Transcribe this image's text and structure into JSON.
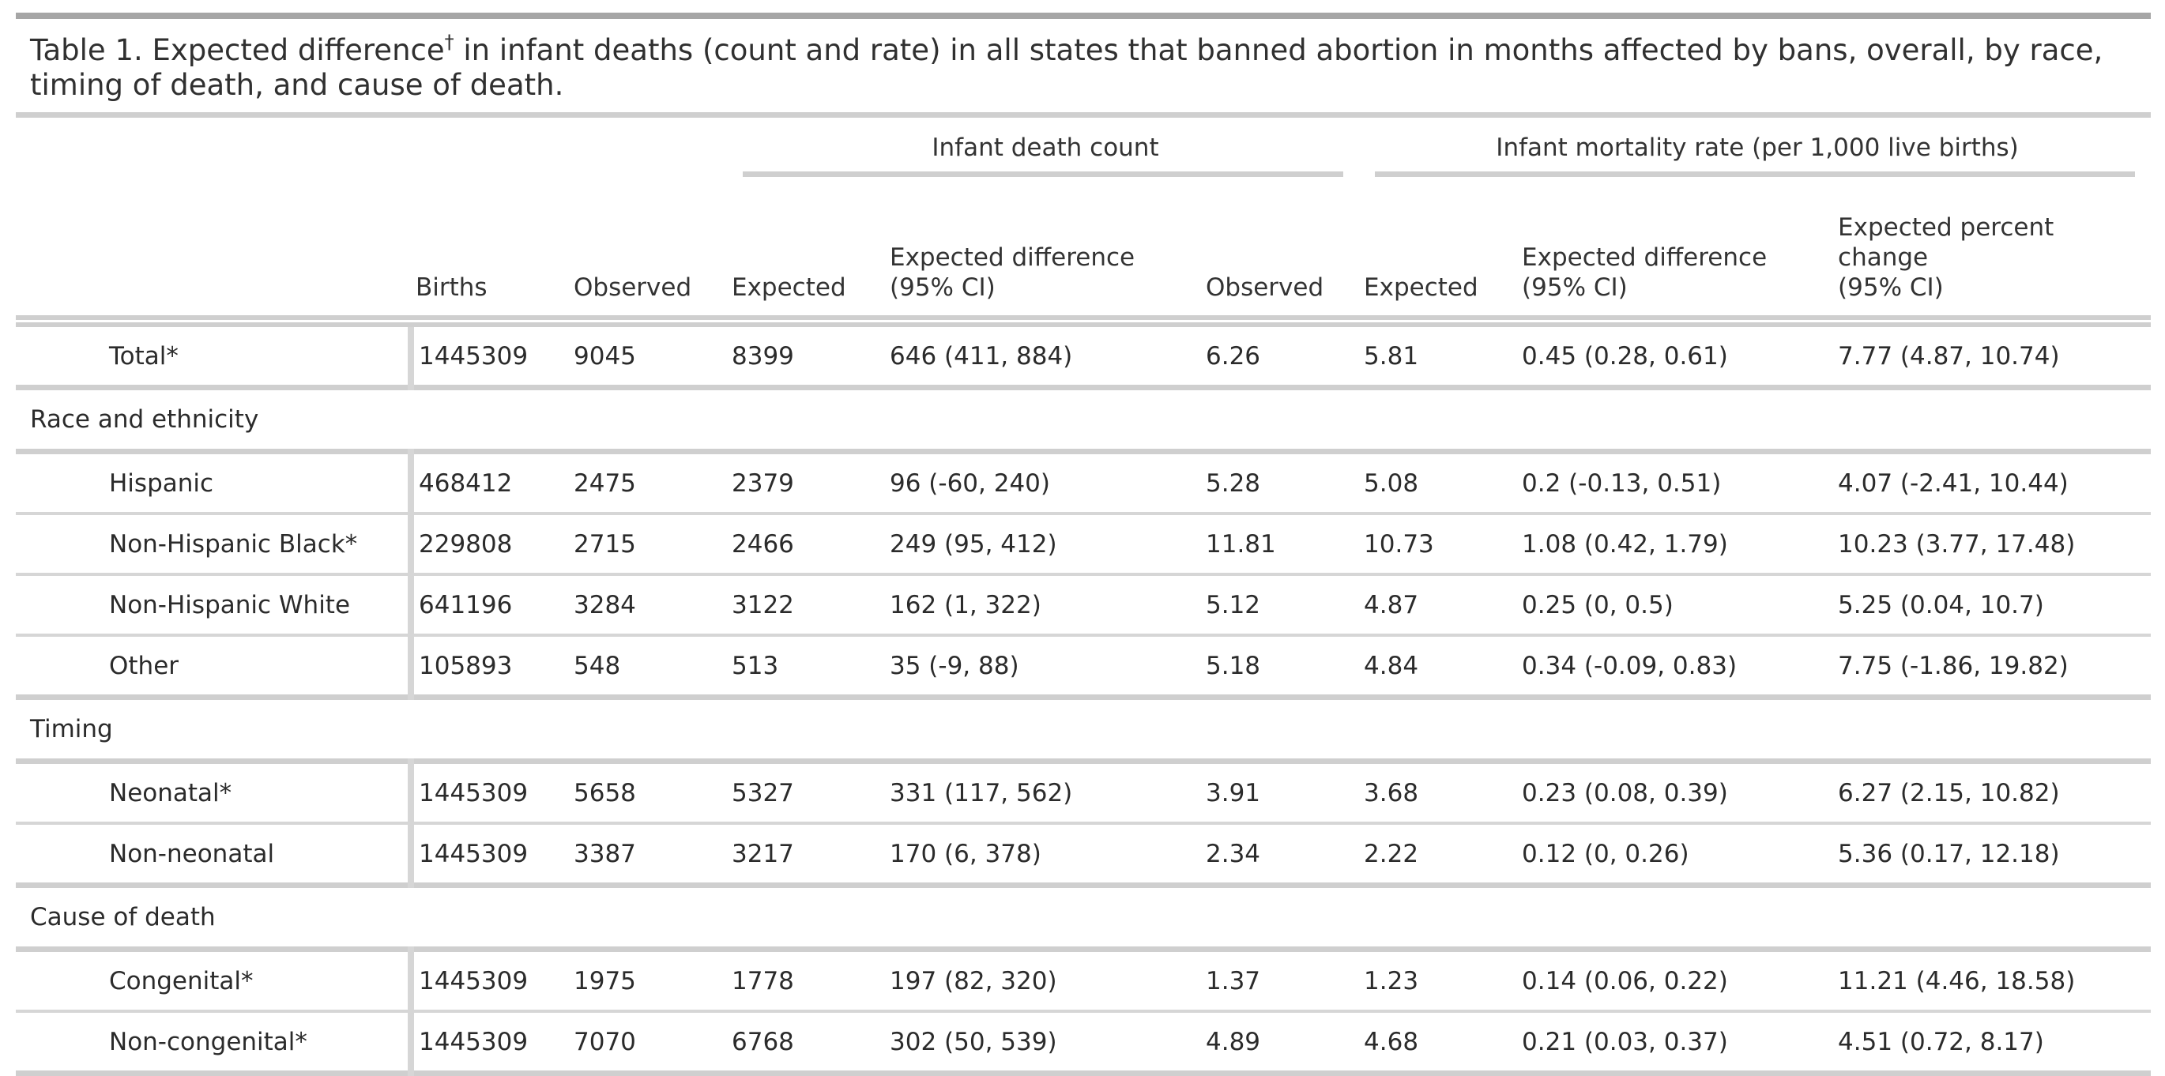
{
  "title": {
    "before_dagger": "Table 1. Expected difference",
    "dagger": "†",
    "after_dagger": " in infant deaths (count and rate) in all states that banned abortion in months affected by bans, overall, by race, timing of death, and cause of death."
  },
  "spanners": {
    "count": "Infant death count",
    "rate": "Infant mortality rate (per 1,000 live births)"
  },
  "columns": {
    "births": "Births",
    "count_observed": "Observed",
    "count_expected": "Expected",
    "count_diff_l1": "Expected difference",
    "count_diff_l2": "(95% CI)",
    "rate_observed": "Observed",
    "rate_expected": "Expected",
    "rate_diff_l1": "Expected difference",
    "rate_diff_l2": "(95% CI)",
    "pct_l1": "Expected percent",
    "pct_l2": "change",
    "pct_l3": "(95% CI)"
  },
  "total": {
    "label": "Total*",
    "births": "1445309",
    "count_observed": "9045",
    "count_expected": "8399",
    "count_diff": "646 (411, 884)",
    "rate_observed": "6.26",
    "rate_expected": "5.81",
    "rate_diff": "0.45 (0.28, 0.61)",
    "pct_change": "7.77 (4.87, 10.74)"
  },
  "groups": [
    {
      "label": "Race and ethnicity",
      "rows": [
        {
          "label": "Hispanic",
          "births": "468412",
          "count_observed": "2475",
          "count_expected": "2379",
          "count_diff": "96 (-60, 240)",
          "rate_observed": "5.28",
          "rate_expected": "5.08",
          "rate_diff": "0.2 (-0.13, 0.51)",
          "pct_change": "4.07 (-2.41, 10.44)"
        },
        {
          "label": "Non-Hispanic Black*",
          "births": "229808",
          "count_observed": "2715",
          "count_expected": "2466",
          "count_diff": "249 (95, 412)",
          "rate_observed": "11.81",
          "rate_expected": "10.73",
          "rate_diff": "1.08 (0.42, 1.79)",
          "pct_change": "10.23 (3.77, 17.48)"
        },
        {
          "label": "Non-Hispanic White",
          "births": "641196",
          "count_observed": "3284",
          "count_expected": "3122",
          "count_diff": "162 (1, 322)",
          "rate_observed": "5.12",
          "rate_expected": "4.87",
          "rate_diff": "0.25 (0, 0.5)",
          "pct_change": "5.25 (0.04, 10.7)"
        },
        {
          "label": "Other",
          "births": "105893",
          "count_observed": "548",
          "count_expected": "513",
          "count_diff": "35 (-9, 88)",
          "rate_observed": "5.18",
          "rate_expected": "4.84",
          "rate_diff": "0.34 (-0.09, 0.83)",
          "pct_change": "7.75 (-1.86, 19.82)"
        }
      ]
    },
    {
      "label": "Timing",
      "rows": [
        {
          "label": "Neonatal*",
          "births": "1445309",
          "count_observed": "5658",
          "count_expected": "5327",
          "count_diff": "331 (117, 562)",
          "rate_observed": "3.91",
          "rate_expected": "3.68",
          "rate_diff": "0.23 (0.08, 0.39)",
          "pct_change": "6.27 (2.15, 10.82)"
        },
        {
          "label": "Non-neonatal",
          "births": "1445309",
          "count_observed": "3387",
          "count_expected": "3217",
          "count_diff": "170 (6, 378)",
          "rate_observed": "2.34",
          "rate_expected": "2.22",
          "rate_diff": "0.12 (0, 0.26)",
          "pct_change": "5.36 (0.17, 12.18)"
        }
      ]
    },
    {
      "label": "Cause of death",
      "rows": [
        {
          "label": "Congenital*",
          "births": "1445309",
          "count_observed": "1975",
          "count_expected": "1778",
          "count_diff": "197 (82, 320)",
          "rate_observed": "1.37",
          "rate_expected": "1.23",
          "rate_diff": "0.14 (0.06, 0.22)",
          "pct_change": "11.21 (4.46, 18.58)"
        },
        {
          "label": "Non-congenital*",
          "births": "1445309",
          "count_observed": "7070",
          "count_expected": "6768",
          "count_diff": "302 (50, 539)",
          "rate_observed": "4.89",
          "rate_expected": "4.68",
          "rate_diff": "0.21 (0.03, 0.37)",
          "pct_change": "4.51 (0.72, 8.17)"
        }
      ]
    }
  ]
}
